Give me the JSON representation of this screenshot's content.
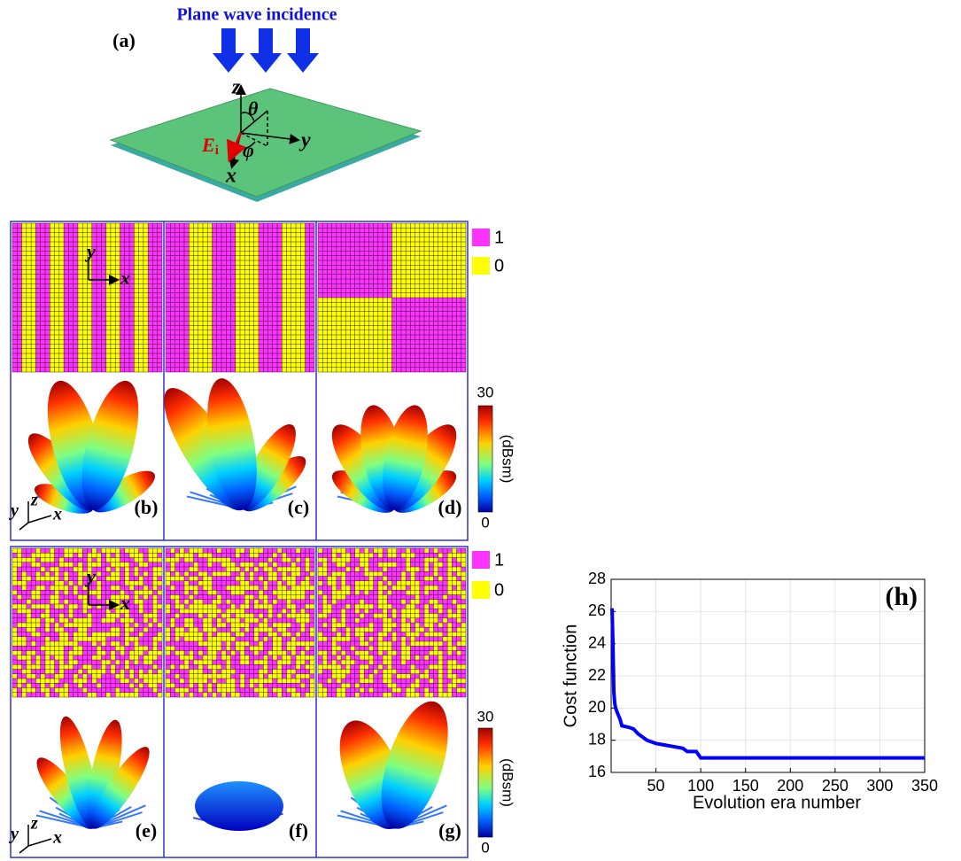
{
  "figure": {
    "incidence_title": "Plane wave incidence",
    "panel_labels": [
      "(a)",
      "(b)",
      "(c)",
      "(d)",
      "(e)",
      "(f)",
      "(g)"
    ],
    "board_axes": {
      "z": "z",
      "y": "y",
      "x": "x",
      "theta": "θ",
      "phi": "φ",
      "field": "E",
      "field_sub": "i"
    },
    "legend": [
      {
        "color": "#ff33ff",
        "label": "1"
      },
      {
        "color": "#ffff00",
        "label": "0"
      }
    ],
    "colorbar": {
      "max": 30,
      "min": 0,
      "unit": "(dBsm)"
    },
    "coord_axes": {
      "x": "x",
      "y": "y",
      "z": "z"
    }
  },
  "chart_data": {
    "type": "line",
    "annotation": "(h)",
    "xlabel": "Evolution era number",
    "ylabel": "Cost function",
    "x": [
      1,
      2,
      3,
      4,
      5,
      7,
      10,
      12,
      20,
      25,
      30,
      35,
      40,
      45,
      50,
      60,
      70,
      80,
      85,
      95,
      100,
      350
    ],
    "series": [
      {
        "name": "Cost function",
        "color": "#0000ff",
        "values": [
          26.2,
          24,
          21,
          20.3,
          20,
          19.7,
          19.3,
          18.9,
          18.8,
          18.7,
          18.4,
          18.2,
          18,
          17.9,
          17.8,
          17.7,
          17.6,
          17.5,
          17.3,
          17.3,
          16.9,
          16.9
        ]
      }
    ],
    "xlim": [
      0,
      350
    ],
    "xticks": [
      50,
      100,
      150,
      200,
      250,
      300,
      350
    ],
    "ylim": [
      16,
      28
    ],
    "yticks": [
      16,
      18,
      20,
      22,
      24,
      26,
      28
    ],
    "grid": true
  }
}
